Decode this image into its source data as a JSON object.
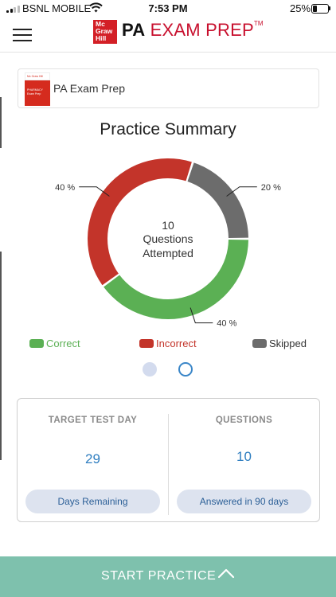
{
  "status_bar": {
    "carrier": "BSNL MOBILE",
    "time": "7:53 PM",
    "battery_percent": "25%",
    "battery_level": 0.25,
    "signal_bars_active": 2,
    "icons": [
      "signal-bars-icon",
      "wifi-icon",
      "battery-icon"
    ]
  },
  "nav": {
    "menu_icon": "hamburger-menu-icon",
    "logo_lines": [
      "Mc",
      "Graw",
      "Hill"
    ],
    "brand_bold": "PA",
    "brand_light": "EXAM PREP",
    "brand_tm": "TM"
  },
  "product": {
    "name": "PA Exam Prep",
    "thumb_top": "Mc Graw Hill",
    "thumb_text": "PHARMACY Exam Prep"
  },
  "summary": {
    "title": "Practice Summary",
    "center_number": "10",
    "center_line1": "Questions",
    "center_line2": "Attempted"
  },
  "chart_data": {
    "type": "pie",
    "title": "Practice Summary",
    "categories": [
      "Correct",
      "Incorrect",
      "Skipped"
    ],
    "values": [
      40,
      40,
      20
    ],
    "labels": [
      "40 %",
      "40 %",
      "20 %"
    ],
    "colors": [
      "#5bb054",
      "#c3342a",
      "#6c6c6c"
    ],
    "legend_position": "bottom"
  },
  "legend": {
    "correct": "Correct",
    "incorrect": "Incorrect",
    "skipped": "Skipped"
  },
  "colors": {
    "correct": "#5bb054",
    "incorrect": "#c3342a",
    "skipped": "#6c6c6c",
    "accent_blue": "#2f7ec0",
    "cta_green": "#7ec1ad",
    "brand_red": "#c8102e"
  },
  "stats": {
    "target": {
      "heading": "TARGET TEST DAY",
      "value": "29",
      "pill": "Days Remaining"
    },
    "questions": {
      "heading": "QUESTIONS",
      "value": "10",
      "pill": "Answered in 90 days"
    }
  },
  "cta": {
    "label": "START PRACTICE",
    "icon": "chevron-up-icon"
  }
}
